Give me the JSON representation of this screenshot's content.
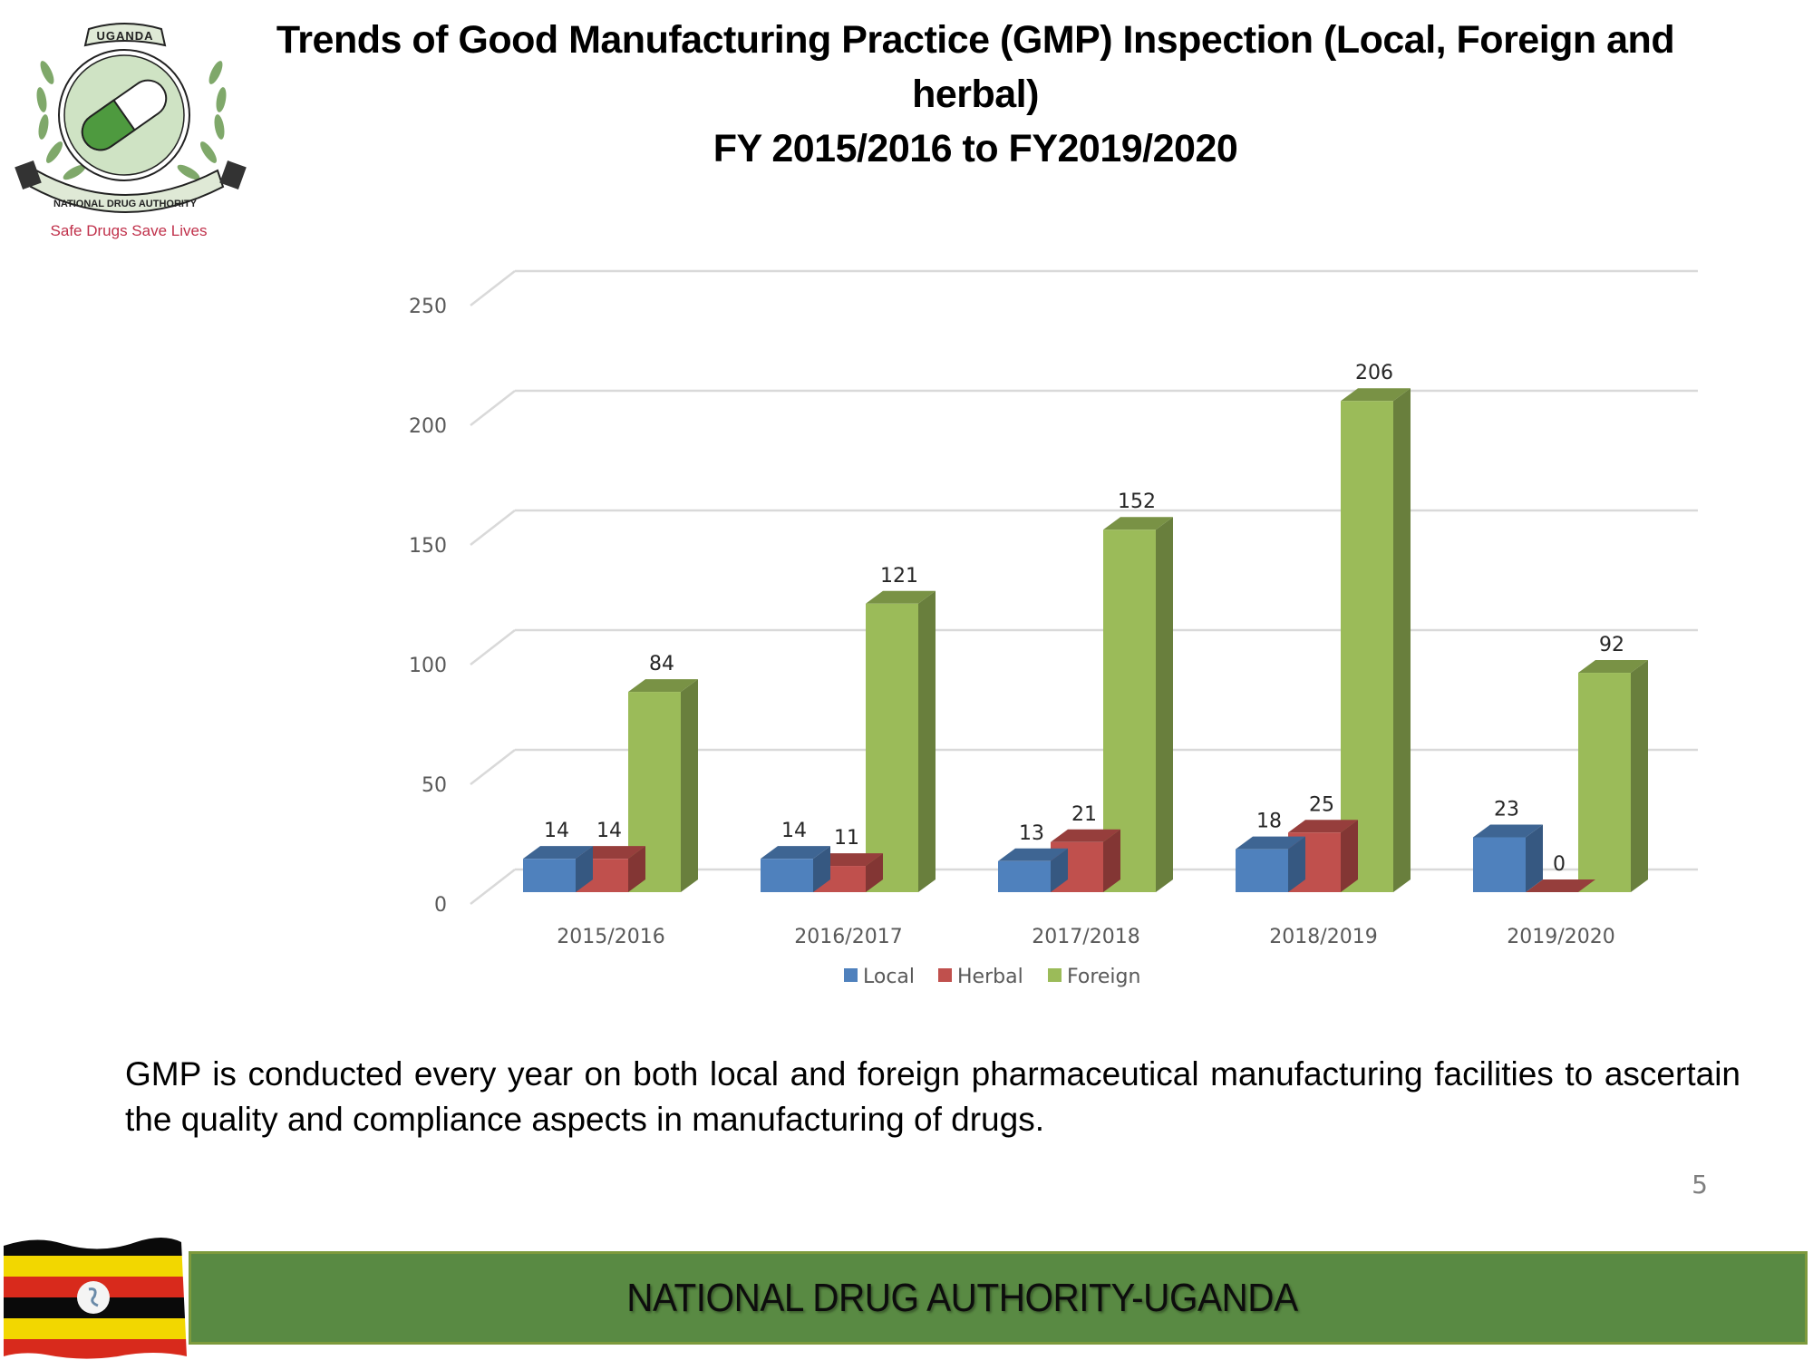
{
  "logo": {
    "top_text": "UGANDA",
    "ring_text": "NATIONAL DRUG AUTHORITY",
    "tagline": "Safe Drugs Save Lives"
  },
  "title": {
    "line1": "Trends of Good Manufacturing Practice (GMP) Inspection (Local, Foreign and",
    "line2": "herbal)",
    "line3": "FY 2015/2016 to FY2019/2020"
  },
  "chart_data": {
    "type": "bar",
    "style": "3d-clustered-column",
    "title": "Trends of Good Manufacturing Practice (GMP) Inspection (Local, Foreign and herbal) FY 2015/2016 to FY2019/2020",
    "xlabel": "",
    "ylabel": "",
    "categories": [
      "2015/2016",
      "2016/2017",
      "2017/2018",
      "2018/2019",
      "2019/2020"
    ],
    "series": [
      {
        "name": "Local",
        "color": "#4f81bd",
        "values": [
          14,
          14,
          13,
          18,
          23
        ]
      },
      {
        "name": "Herbal",
        "color": "#c0504d",
        "values": [
          14,
          11,
          21,
          25,
          0
        ]
      },
      {
        "name": "Foreign",
        "color": "#9bbb59",
        "values": [
          84,
          121,
          152,
          206,
          92
        ]
      }
    ],
    "ylim": [
      0,
      250
    ],
    "yticks": [
      "0",
      "50",
      "100",
      "150",
      "200",
      "250"
    ],
    "grid": true,
    "legend": "bottom",
    "data_labels": true
  },
  "body_text": "GMP is conducted every year on both local and foreign pharmaceutical manufacturing facilities to ascertain the quality and compliance aspects in manufacturing of drugs.",
  "page_number": "5",
  "footer": {
    "banner_text": "NATIONAL DRUG AUTHORITY-UGANDA",
    "banner_color": "#598a43"
  }
}
